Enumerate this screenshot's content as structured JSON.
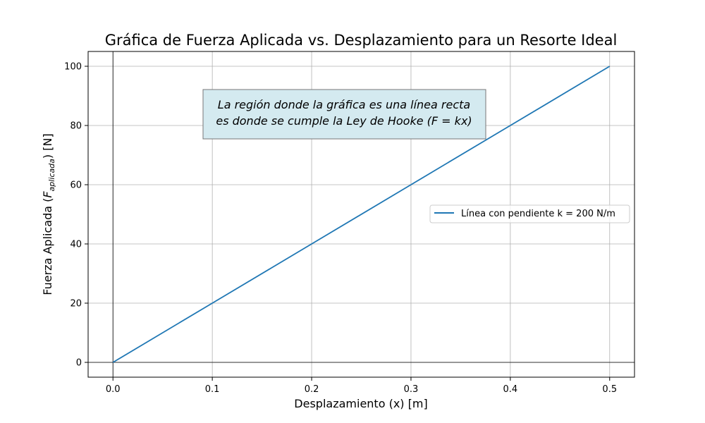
{
  "chart_data": {
    "type": "line",
    "title": "Gráfica de Fuerza Aplicada vs. Desplazamiento para un Resorte Ideal",
    "xlabel": "Desplazamiento (x) [m]",
    "ylabel_main": "Fuerza Aplicada (",
    "ylabel_var": "F",
    "ylabel_sub": "aplicada",
    "ylabel_tail": ") [N]",
    "xlim": [
      -0.025,
      0.525
    ],
    "ylim": [
      -5,
      105
    ],
    "xticks": [
      0.0,
      0.1,
      0.2,
      0.3,
      0.4,
      0.5
    ],
    "xtick_labels": [
      "0.0",
      "0.1",
      "0.2",
      "0.3",
      "0.4",
      "0.5"
    ],
    "yticks": [
      0,
      20,
      40,
      60,
      80,
      100
    ],
    "ytick_labels": [
      "0",
      "20",
      "40",
      "60",
      "80",
      "100"
    ],
    "grid": true,
    "reference_lines": {
      "x": 0,
      "y": 0
    },
    "series": [
      {
        "name": "Línea con pendiente k = 200 N/m",
        "color": "#1f77b4",
        "x": [
          0.0,
          0.1,
          0.2,
          0.3,
          0.4,
          0.5
        ],
        "y": [
          0,
          20,
          40,
          60,
          80,
          100
        ]
      }
    ],
    "legend_position": "center-right",
    "annotation": {
      "line1": "La región donde la gráfica es una línea recta",
      "line2_prefix": "es donde se cumple la Ley de Hooke (",
      "line2_formula": "F = kx",
      "line2_suffix": ")",
      "background": "#d4eaf0",
      "border": "#777777"
    }
  }
}
